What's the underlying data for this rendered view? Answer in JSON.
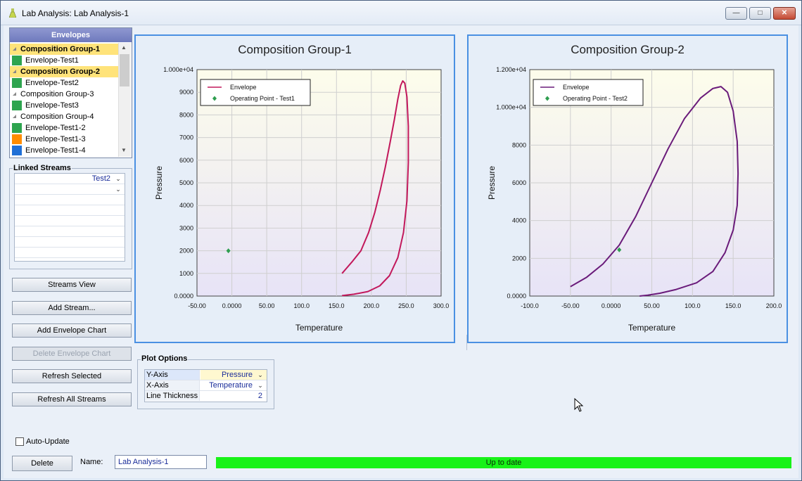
{
  "window": {
    "title": "Lab Analysis: Lab Analysis-1"
  },
  "envelopes": {
    "header": "Envelopes",
    "items": [
      {
        "label": "Composition Group-1",
        "kind": "group",
        "selected": true
      },
      {
        "label": "Envelope-Test1",
        "kind": "envelope",
        "color": "#2ea44f"
      },
      {
        "label": "Composition Group-2",
        "kind": "group",
        "selected": true
      },
      {
        "label": "Envelope-Test2",
        "kind": "envelope",
        "color": "#2ea44f"
      },
      {
        "label": "Composition Group-3",
        "kind": "group",
        "selected": false
      },
      {
        "label": "Envelope-Test3",
        "kind": "envelope",
        "color": "#2ea44f"
      },
      {
        "label": "Composition Group-4",
        "kind": "group",
        "selected": false
      },
      {
        "label": "Envelope-Test1-2",
        "kind": "envelope",
        "color": "#2ea44f"
      },
      {
        "label": "Envelope-Test1-3",
        "kind": "envelope",
        "color": "#ff8c00"
      },
      {
        "label": "Envelope-Test1-4",
        "kind": "envelope",
        "color": "#1f6fd6"
      }
    ]
  },
  "linked_streams": {
    "title": "Linked Streams",
    "rows": [
      "Test2",
      ""
    ]
  },
  "buttons": {
    "streams_view": "Streams View",
    "add_stream": "Add Stream...",
    "add_envelope_chart": "Add Envelope Chart",
    "delete_envelope_chart": "Delete Envelope Chart",
    "refresh_selected": "Refresh Selected",
    "refresh_all": "Refresh All Streams",
    "delete": "Delete"
  },
  "plot_options": {
    "title": "Plot Options",
    "rows": [
      {
        "key": "Y-Axis",
        "value": "Pressure"
      },
      {
        "key": "X-Axis",
        "value": "Temperature"
      },
      {
        "key": "Line Thickness",
        "value": "2"
      }
    ]
  },
  "auto_update": {
    "label": "Auto-Update",
    "checked": false
  },
  "name": {
    "label": "Name:",
    "value": "Lab Analysis-1"
  },
  "status": {
    "text": "Up to date",
    "color": "#18f218"
  },
  "chart_data": [
    {
      "type": "line",
      "title": "Composition Group-1",
      "xlabel": "Temperature",
      "ylabel": "Pressure",
      "xlim": [
        -50,
        300
      ],
      "ylim": [
        0,
        10000
      ],
      "x_ticks": [
        "-50.00",
        "0.0000",
        "50.00",
        "100.0",
        "150.0",
        "200.0",
        "250.0",
        "300.0"
      ],
      "y_ticks": [
        "0.0000",
        "1000",
        "2000",
        "3000",
        "4000",
        "5000",
        "6000",
        "7000",
        "8000",
        "9000",
        "1.000e+04"
      ],
      "legend": {
        "placement": "top-left",
        "entries": [
          "Envelope",
          "Operating Point - Test1"
        ]
      },
      "grid": true,
      "series": [
        {
          "name": "Envelope",
          "color": "#c2185b",
          "points": [
            [
              158,
              1000
            ],
            [
              172,
              1500
            ],
            [
              185,
              2000
            ],
            [
              196,
              2800
            ],
            [
              205,
              3700
            ],
            [
              213,
              4700
            ],
            [
              220,
              5700
            ],
            [
              227,
              6800
            ],
            [
              233,
              7800
            ],
            [
              238,
              8700
            ],
            [
              242,
              9300
            ],
            [
              245,
              9500
            ],
            [
              248,
              9400
            ],
            [
              251,
              8800
            ],
            [
              253,
              7500
            ],
            [
              253,
              5900
            ],
            [
              251,
              4200
            ],
            [
              246,
              2800
            ],
            [
              238,
              1700
            ],
            [
              226,
              900
            ],
            [
              212,
              450
            ],
            [
              195,
              200
            ],
            [
              175,
              80
            ],
            [
              158,
              20
            ]
          ]
        },
        {
          "name": "Operating Point - Test1",
          "color": "#2e9e4f",
          "marker": "diamond",
          "points": [
            [
              -5,
              2000
            ]
          ]
        }
      ]
    },
    {
      "type": "line",
      "title": "Composition Group-2",
      "xlabel": "Temperature",
      "ylabel": "Pressure",
      "xlim": [
        -100,
        200
      ],
      "ylim": [
        0,
        12000
      ],
      "x_ticks": [
        "-100.0",
        "-50.00",
        "0.0000",
        "50.00",
        "100.0",
        "150.0",
        "200.0"
      ],
      "y_ticks": [
        "0.0000",
        "2000",
        "4000",
        "6000",
        "8000",
        "1.000e+04",
        "1.200e+04"
      ],
      "legend": {
        "placement": "top-left",
        "entries": [
          "Envelope",
          "Operating Point - Test2"
        ]
      },
      "grid": true,
      "series": [
        {
          "name": "Envelope",
          "color": "#6a1b7a",
          "points": [
            [
              -50,
              500
            ],
            [
              -30,
              1000
            ],
            [
              -10,
              1700
            ],
            [
              10,
              2700
            ],
            [
              30,
              4200
            ],
            [
              50,
              6000
            ],
            [
              70,
              7800
            ],
            [
              90,
              9400
            ],
            [
              110,
              10500
            ],
            [
              125,
              11000
            ],
            [
              135,
              11100
            ],
            [
              143,
              10800
            ],
            [
              150,
              9800
            ],
            [
              155,
              8200
            ],
            [
              156,
              6500
            ],
            [
              155,
              4800
            ],
            [
              150,
              3500
            ],
            [
              140,
              2300
            ],
            [
              125,
              1300
            ],
            [
              105,
              700
            ],
            [
              80,
              350
            ],
            [
              60,
              150
            ],
            [
              45,
              50
            ],
            [
              35,
              0
            ]
          ]
        },
        {
          "name": "Operating Point - Test2",
          "color": "#2e9e4f",
          "marker": "diamond",
          "points": [
            [
              10,
              2450
            ]
          ]
        }
      ]
    }
  ]
}
